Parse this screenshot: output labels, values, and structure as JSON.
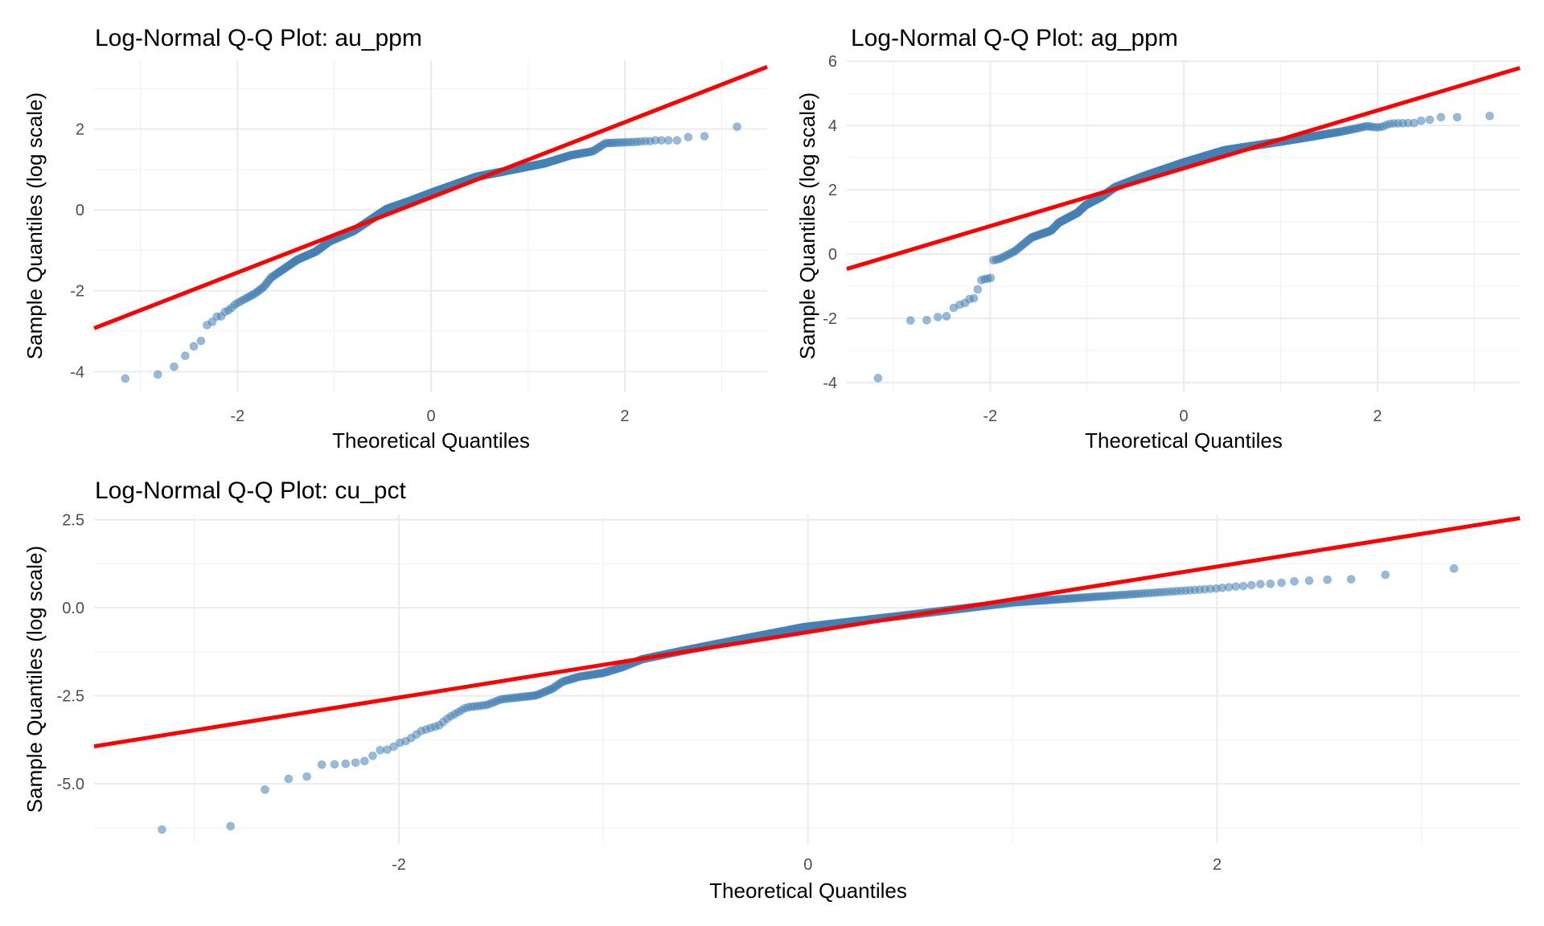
{
  "chart_data": [
    {
      "type": "scatter",
      "id": "au",
      "title": "Log-Normal Q-Q Plot: au_ppm",
      "xlabel": "Theoretical Quantiles",
      "ylabel": "Sample Quantiles (log scale)",
      "xlim": [
        -3.48,
        3.47
      ],
      "ylim": [
        -4.51,
        3.7
      ],
      "x_ticks": [
        -2,
        0,
        2
      ],
      "x_tick_labels": [
        "-2",
        "0",
        "2"
      ],
      "x_minor": [
        -3,
        -1,
        1,
        3
      ],
      "y_ticks": [
        -4,
        -2,
        0,
        2
      ],
      "y_tick_labels": [
        "-4",
        "-2",
        "0",
        "2"
      ],
      "y_minor": [
        -3,
        -1,
        1,
        3
      ],
      "grid": true,
      "n_points": 630,
      "point_color": "#4682b4",
      "reference_line": {
        "slope": 0.93,
        "intercept": 0.31,
        "color": "#ff0000"
      },
      "sample_curve": [
        [
          -3.16,
          -4.17
        ],
        [
          -2.82,
          -4.07
        ],
        [
          -2.66,
          -3.89
        ],
        [
          -2.54,
          -3.61
        ],
        [
          -2.46,
          -3.39
        ],
        [
          -2.38,
          -3.26
        ],
        [
          -2.31,
          -2.82
        ],
        [
          -2.27,
          -2.8
        ],
        [
          -2.22,
          -2.64
        ],
        [
          -2.17,
          -2.64
        ],
        [
          -2.12,
          -2.5
        ],
        [
          -2.08,
          -2.47
        ],
        [
          -2.02,
          -2.33
        ],
        [
          -1.82,
          -2.07
        ],
        [
          -1.73,
          -1.91
        ],
        [
          -1.65,
          -1.67
        ],
        [
          -1.38,
          -1.23
        ],
        [
          -1.19,
          -1.03
        ],
        [
          -1.05,
          -0.78
        ],
        [
          -0.8,
          -0.52
        ],
        [
          -0.46,
          0.02
        ],
        [
          -0.22,
          0.22
        ],
        [
          0.0,
          0.42
        ],
        [
          0.47,
          0.82
        ],
        [
          1.0,
          1.07
        ],
        [
          1.17,
          1.15
        ],
        [
          1.44,
          1.35
        ],
        [
          1.67,
          1.45
        ],
        [
          1.8,
          1.65
        ],
        [
          2.1,
          1.68
        ],
        [
          2.15,
          1.69
        ],
        [
          2.21,
          1.7
        ],
        [
          2.26,
          1.7
        ],
        [
          2.31,
          1.72
        ],
        [
          2.37,
          1.72
        ],
        [
          2.45,
          1.72
        ],
        [
          2.54,
          1.72
        ],
        [
          2.65,
          1.8
        ],
        [
          2.82,
          1.82
        ],
        [
          3.16,
          2.06
        ]
      ]
    },
    {
      "type": "scatter",
      "id": "ag",
      "title": "Log-Normal Q-Q Plot: ag_ppm",
      "xlabel": "Theoretical Quantiles",
      "ylabel": "Sample Quantiles (log scale)",
      "xlim": [
        -3.48,
        3.47
      ],
      "ylim": [
        -4.3,
        6.03
      ],
      "x_ticks": [
        -2,
        0,
        2
      ],
      "x_tick_labels": [
        "-2",
        "0",
        "2"
      ],
      "x_minor": [
        -3,
        -1,
        1,
        3
      ],
      "y_ticks": [
        -4,
        -2,
        0,
        2,
        4,
        6
      ],
      "y_tick_labels": [
        "-4",
        "-2",
        "0",
        "2",
        "4",
        "6"
      ],
      "y_minor": [
        -3,
        -1,
        1,
        3,
        5
      ],
      "grid": true,
      "n_points": 630,
      "point_color": "#4682b4",
      "reference_line": {
        "slope": 0.9,
        "intercept": 2.67,
        "color": "#ff0000"
      },
      "sample_curve": [
        [
          -3.16,
          -3.87
        ],
        [
          -2.82,
          -2.05
        ],
        [
          -2.66,
          -2.06
        ],
        [
          -2.54,
          -1.96
        ],
        [
          -2.46,
          -1.97
        ],
        [
          -2.38,
          -1.68
        ],
        [
          -2.32,
          -1.58
        ],
        [
          -2.27,
          -1.55
        ],
        [
          -2.22,
          -1.4
        ],
        [
          -2.17,
          -1.39
        ],
        [
          -2.13,
          -1.12
        ],
        [
          -2.1,
          -0.82
        ],
        [
          -2.06,
          -0.78
        ],
        [
          -2.02,
          -0.76
        ],
        [
          -1.99,
          -0.74
        ],
        [
          -1.98,
          -0.2
        ],
        [
          -1.9,
          -0.15
        ],
        [
          -1.74,
          0.1
        ],
        [
          -1.57,
          0.52
        ],
        [
          -1.37,
          0.73
        ],
        [
          -1.29,
          0.98
        ],
        [
          -1.1,
          1.28
        ],
        [
          -1.01,
          1.53
        ],
        [
          -0.85,
          1.78
        ],
        [
          -0.71,
          2.08
        ],
        [
          -0.41,
          2.43
        ],
        [
          0.0,
          2.85
        ],
        [
          0.42,
          3.23
        ],
        [
          1.0,
          3.5
        ],
        [
          1.31,
          3.65
        ],
        [
          1.64,
          3.82
        ],
        [
          1.89,
          3.98
        ],
        [
          2.0,
          3.94
        ],
        [
          2.06,
          3.97
        ],
        [
          2.11,
          4.05
        ],
        [
          2.18,
          4.07
        ],
        [
          2.25,
          4.07
        ],
        [
          2.32,
          4.08
        ],
        [
          2.38,
          4.08
        ],
        [
          2.45,
          4.15
        ],
        [
          2.54,
          4.18
        ],
        [
          2.65,
          4.26
        ],
        [
          2.82,
          4.26
        ],
        [
          3.15,
          4.3
        ]
      ]
    },
    {
      "type": "scatter",
      "id": "cu",
      "title": "Log-Normal Q-Q Plot: cu_pct",
      "xlabel": "Theoretical Quantiles",
      "ylabel": "Sample Quantiles (log scale)",
      "xlim": [
        -3.49,
        3.48
      ],
      "ylim": [
        -6.71,
        2.65
      ],
      "x_ticks": [
        -2,
        0,
        2
      ],
      "x_tick_labels": [
        "-2",
        "0",
        "2"
      ],
      "x_minor": [
        -3,
        -1,
        1,
        3
      ],
      "y_ticks": [
        -5.0,
        -2.5,
        0.0,
        2.5
      ],
      "y_tick_labels": [
        "-5.0",
        "-2.5",
        "0.0",
        "2.5"
      ],
      "y_minor": [
        -6.25,
        -3.75,
        -1.25,
        1.25
      ],
      "grid": true,
      "n_points": 630,
      "point_color": "#4682b4",
      "reference_line": {
        "slope": 0.93,
        "intercept": -0.69,
        "color": "#ff0000"
      },
      "sample_curve": [
        [
          -3.16,
          -6.3
        ],
        [
          -2.83,
          -6.25
        ],
        [
          -2.66,
          -5.18
        ],
        [
          -2.55,
          -4.86
        ],
        [
          -2.46,
          -4.85
        ],
        [
          -2.39,
          -4.46
        ],
        [
          -2.33,
          -4.45
        ],
        [
          -2.27,
          -4.44
        ],
        [
          -2.22,
          -4.4
        ],
        [
          -2.18,
          -4.39
        ],
        [
          -2.14,
          -4.27
        ],
        [
          -2.1,
          -4.05
        ],
        [
          -2.07,
          -4.03
        ],
        [
          -2.04,
          -4.03
        ],
        [
          -2.01,
          -3.86
        ],
        [
          -1.98,
          -3.81
        ],
        [
          -1.96,
          -3.78
        ],
        [
          -1.89,
          -3.5
        ],
        [
          -1.8,
          -3.33
        ],
        [
          -1.76,
          -3.13
        ],
        [
          -1.67,
          -2.83
        ],
        [
          -1.57,
          -2.76
        ],
        [
          -1.5,
          -2.6
        ],
        [
          -1.33,
          -2.49
        ],
        [
          -1.25,
          -2.3
        ],
        [
          -1.2,
          -2.1
        ],
        [
          -1.12,
          -1.96
        ],
        [
          -1.0,
          -1.85
        ],
        [
          -0.91,
          -1.69
        ],
        [
          -0.81,
          -1.46
        ],
        [
          -0.62,
          -1.23
        ],
        [
          -0.36,
          -0.93
        ],
        [
          -0.02,
          -0.55
        ],
        [
          0.5,
          -0.2
        ],
        [
          1.0,
          0.15
        ],
        [
          1.5,
          0.35
        ],
        [
          2.0,
          0.55
        ],
        [
          2.1,
          0.61
        ],
        [
          2.14,
          0.62
        ],
        [
          2.18,
          0.65
        ],
        [
          2.22,
          0.68
        ],
        [
          2.27,
          0.68
        ],
        [
          2.33,
          0.72
        ],
        [
          2.39,
          0.76
        ],
        [
          2.46,
          0.77
        ],
        [
          2.55,
          0.8
        ],
        [
          2.66,
          0.81
        ],
        [
          2.83,
          0.94
        ],
        [
          3.17,
          1.12
        ]
      ]
    }
  ]
}
